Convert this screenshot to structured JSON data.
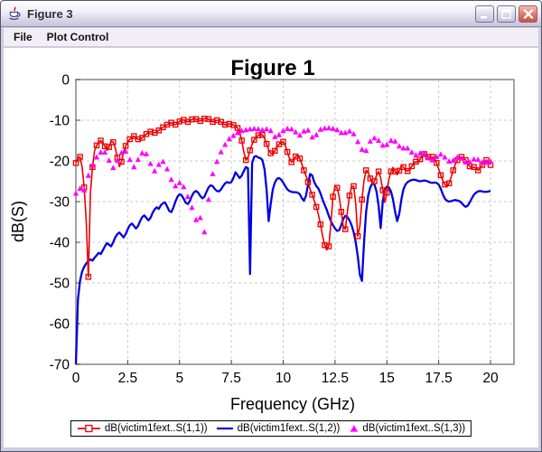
{
  "window": {
    "title": "Figure 3",
    "controls": {
      "minimize": "minimize",
      "maximize": "maximize",
      "close": "close"
    }
  },
  "menubar": {
    "items": [
      "File",
      "Plot Control"
    ]
  },
  "chart_data": {
    "type": "line",
    "title": "Figure 1",
    "xlabel": "Frequency (GHz)",
    "ylabel": "dB(S)",
    "xlim": [
      0,
      21.1
    ],
    "ylim": [
      -70,
      0
    ],
    "x_ticks": [
      0,
      2.5,
      5,
      7.5,
      10,
      12.5,
      15,
      17.5,
      20
    ],
    "y_ticks": [
      0,
      -10,
      -20,
      -30,
      -40,
      -50,
      -60,
      -70
    ],
    "grid": true,
    "legend_position": "bottom",
    "x_ghz": {
      "start": 0.0,
      "step": 0.1,
      "points": 201
    },
    "series": [
      {
        "name": "dB(victim1fext..S(1,1))",
        "color": "#ec0000",
        "marker": "open-square",
        "line": true,
        "values": [
          -20.5,
          -19.2,
          -19.0,
          -21.5,
          -26.5,
          -35.0,
          -48.5,
          -28.0,
          -21.5,
          -17.5,
          -16.2,
          -15.4,
          -15.0,
          -15.5,
          -16.4,
          -17.4,
          -16.6,
          -15.2,
          -15.4,
          -16.8,
          -19.2,
          -21.4,
          -20.2,
          -17.8,
          -16.3,
          -15.4,
          -14.7,
          -14.2,
          -13.9,
          -14.3,
          -14.7,
          -14.8,
          -14.3,
          -13.8,
          -13.4,
          -13.1,
          -12.8,
          -12.9,
          -13.1,
          -12.9,
          -12.5,
          -12.1,
          -11.7,
          -11.4,
          -11.1,
          -10.8,
          -10.6,
          -10.9,
          -11.1,
          -10.7,
          -10.3,
          -10.0,
          -9.9,
          -10.2,
          -10.4,
          -10.1,
          -9.8,
          -9.6,
          -9.7,
          -10.0,
          -10.2,
          -9.9,
          -9.6,
          -9.5,
          -9.7,
          -10.1,
          -10.4,
          -10.2,
          -10.0,
          -10.1,
          -10.4,
          -10.8,
          -11.1,
          -11.0,
          -10.9,
          -11.0,
          -11.2,
          -11.4,
          -11.9,
          -13.0,
          -15.0,
          -17.8,
          -19.8,
          -19.2,
          -17.4,
          -15.9,
          -14.8,
          -14.1,
          -13.7,
          -13.4,
          -13.6,
          -14.4,
          -15.8,
          -17.2,
          -18.1,
          -18.3,
          -17.5,
          -16.5,
          -15.9,
          -15.4,
          -15.3,
          -16.2,
          -17.8,
          -19.3,
          -20.3,
          -20.0,
          -18.9,
          -18.6,
          -19.4,
          -20.8,
          -22.3,
          -23.6,
          -25.2,
          -27.0,
          -28.3,
          -29.8,
          -31.3,
          -33.2,
          -35.6,
          -38.4,
          -40.7,
          -41.9,
          -41.0,
          -35.5,
          -28.8,
          -26.2,
          -26.6,
          -28.8,
          -32.5,
          -36.2,
          -36.8,
          -32.5,
          -28.5,
          -26.4,
          -26.2,
          -30.5,
          -38.5,
          -36.0,
          -29.5,
          -24.8,
          -22.3,
          -22.8,
          -24.3,
          -25.6,
          -25.0,
          -23.6,
          -22.6,
          -24.2,
          -27.2,
          -30.2,
          -27.8,
          -24.5,
          -22.6,
          -21.6,
          -22.6,
          -23.4,
          -22.4,
          -21.2,
          -21.5,
          -22.2,
          -22.5,
          -22.2,
          -21.3,
          -20.5,
          -20.2,
          -20.4,
          -19.6,
          -18.8,
          -18.3,
          -18.5,
          -19.0,
          -19.3,
          -19.0,
          -19.4,
          -20.5,
          -22.0,
          -23.5,
          -24.8,
          -25.8,
          -26.3,
          -25.5,
          -24.0,
          -22.3,
          -20.8,
          -19.8,
          -19.2,
          -19.0,
          -19.3,
          -19.8,
          -20.6,
          -21.3,
          -21.8,
          -21.5,
          -21.8,
          -22.3,
          -21.8,
          -21.0,
          -20.3,
          -19.8,
          -20.3,
          -21.0
        ]
      },
      {
        "name": "dB(victim1fext..S(1,2))",
        "color": "#0000e0",
        "marker": "none",
        "line": true,
        "values": [
          -70.0,
          -54.0,
          -49.5,
          -47.2,
          -46.0,
          -45.2,
          -44.6,
          -44.2,
          -44.5,
          -43.8,
          -43.2,
          -42.6,
          -42.9,
          -42.0,
          -41.0,
          -40.2,
          -40.6,
          -41.0,
          -40.0,
          -38.8,
          -38.0,
          -37.6,
          -38.2,
          -38.8,
          -38.0,
          -36.8,
          -35.8,
          -35.4,
          -36.0,
          -36.6,
          -36.0,
          -34.8,
          -33.8,
          -33.4,
          -34.0,
          -34.6,
          -34.0,
          -32.8,
          -31.9,
          -31.4,
          -31.8,
          -30.9,
          -30.4,
          -30.2,
          -31.2,
          -32.3,
          -32.6,
          -31.5,
          -30.0,
          -28.8,
          -28.2,
          -28.4,
          -29.3,
          -30.3,
          -30.6,
          -29.8,
          -28.6,
          -27.7,
          -27.4,
          -27.8,
          -28.6,
          -29.2,
          -28.8,
          -27.6,
          -26.5,
          -26.0,
          -26.2,
          -26.9,
          -27.4,
          -27.5,
          -27.0,
          -26.2,
          -25.5,
          -25.2,
          -25.4,
          -25.2,
          -24.2,
          -22.8,
          -23.5,
          -24.2,
          -23.6,
          -22.5,
          -21.5,
          -21.8,
          -47.8,
          -20.5,
          -19.0,
          -18.8,
          -19.2,
          -19.3,
          -19.8,
          -22.0,
          -27.0,
          -34.8,
          -30.5,
          -27.0,
          -25.3,
          -24.4,
          -24.2,
          -24.6,
          -25.3,
          -26.2,
          -27.0,
          -27.4,
          -27.6,
          -27.7,
          -27.7,
          -27.8,
          -28.2,
          -29.2,
          -29.8,
          -28.6,
          -25.8,
          -23.2,
          -23.6,
          -25.2,
          -26.2,
          -26.8,
          -28.0,
          -29.5,
          -30.8,
          -32.0,
          -33.5,
          -34.8,
          -35.8,
          -36.6,
          -37.2,
          -37.0,
          -35.8,
          -34.2,
          -33.5,
          -33.8,
          -34.6,
          -35.8,
          -37.5,
          -40.0,
          -43.5,
          -48.0,
          -49.5,
          -40.0,
          -32.5,
          -28.5,
          -26.5,
          -25.5,
          -25.8,
          -27.5,
          -31.0,
          -36.5,
          -30.0,
          -27.0,
          -26.3,
          -26.5,
          -27.5,
          -29.5,
          -32.5,
          -34.8,
          -33.0,
          -29.5,
          -27.0,
          -25.8,
          -25.2,
          -24.9,
          -24.7,
          -24.6,
          -24.7,
          -24.9,
          -25.0,
          -24.9,
          -24.8,
          -24.9,
          -25.1,
          -25.3,
          -25.4,
          -25.3,
          -25.4,
          -25.8,
          -26.8,
          -28.2,
          -29.3,
          -29.8,
          -30.0,
          -29.9,
          -29.7,
          -29.6,
          -29.7,
          -29.9,
          -30.3,
          -30.9,
          -31.3,
          -31.0,
          -30.2,
          -29.2,
          -28.3,
          -27.8,
          -27.5,
          -27.4,
          -27.5,
          -27.6,
          -27.6,
          -27.5,
          -27.4
        ]
      },
      {
        "name": "dB(victim1fext..S(1,3))",
        "color": "#ff00ff",
        "marker": "triangle",
        "line": false,
        "values": [
          -28.0,
          -26.2,
          -26.8,
          -28.5,
          -27.2,
          -25.3,
          -23.6,
          -22.3,
          -21.1,
          -20.0,
          -19.1,
          -18.4,
          -17.9,
          -17.6,
          -17.9,
          -18.7,
          -19.9,
          -21.0,
          -21.7,
          -21.1,
          -19.9,
          -18.8,
          -18.0,
          -17.5,
          -17.7,
          -18.5,
          -19.7,
          -20.9,
          -21.5,
          -20.9,
          -19.7,
          -18.7,
          -18.1,
          -17.9,
          -18.3,
          -19.3,
          -20.7,
          -21.9,
          -22.5,
          -21.9,
          -20.9,
          -20.3,
          -20.2,
          -20.8,
          -22.0,
          -23.4,
          -24.6,
          -25.6,
          -26.2,
          -26.0,
          -25.4,
          -25.6,
          -26.4,
          -27.6,
          -28.8,
          -29.8,
          -31.5,
          -33.5,
          -34.5,
          -33.0,
          -34.0,
          -36.5,
          -37.5,
          -34.0,
          -29.5,
          -25.5,
          -23.2,
          -21.5,
          -20.2,
          -19.0,
          -17.8,
          -16.8,
          -16.0,
          -15.2,
          -14.6,
          -14.2,
          -13.8,
          -13.4,
          -13.1,
          -12.8,
          -12.6,
          -12.5,
          -12.4,
          -12.3,
          -12.2,
          -12.2,
          -12.1,
          -12.1,
          -12.2,
          -12.3,
          -12.4,
          -12.3,
          -12.2,
          -12.3,
          -12.6,
          -13.2,
          -14.1,
          -14.3,
          -13.6,
          -13.0,
          -12.6,
          -12.3,
          -12.1,
          -12.1,
          -12.2,
          -12.4,
          -12.9,
          -13.5,
          -13.7,
          -13.2,
          -12.7,
          -12.4,
          -12.5,
          -13.1,
          -14.2,
          -14.5,
          -13.6,
          -12.8,
          -12.3,
          -12.1,
          -12.0,
          -11.9,
          -11.9,
          -12.0,
          -12.1,
          -12.2,
          -12.4,
          -12.7,
          -13.1,
          -13.3,
          -13.1,
          -12.8,
          -12.7,
          -12.9,
          -13.4,
          -14.4,
          -15.3,
          -16.2,
          -17.2,
          -18.0,
          -17.5,
          -16.2,
          -15.2,
          -14.6,
          -14.4,
          -14.6,
          -15.0,
          -15.6,
          -16.2,
          -16.4,
          -16.0,
          -15.4,
          -15.0,
          -14.9,
          -15.2,
          -15.8,
          -16.4,
          -16.8,
          -16.9,
          -16.6,
          -16.9,
          -17.3,
          -17.9,
          -18.4,
          -18.6,
          -18.4,
          -18.1,
          -18.0,
          -18.2,
          -18.7,
          -19.3,
          -19.7,
          -19.8,
          -19.5,
          -19.0,
          -18.6,
          -18.4,
          -18.6,
          -19.1,
          -19.7,
          -20.1,
          -20.2,
          -19.9,
          -19.4,
          -19.1,
          -19.1,
          -19.4,
          -19.9,
          -20.3,
          -20.5,
          -20.3,
          -19.9,
          -19.6,
          -19.5,
          -19.7,
          -20.0,
          -20.3,
          -20.5,
          -20.4,
          -20.2,
          -20.1
        ]
      }
    ]
  }
}
